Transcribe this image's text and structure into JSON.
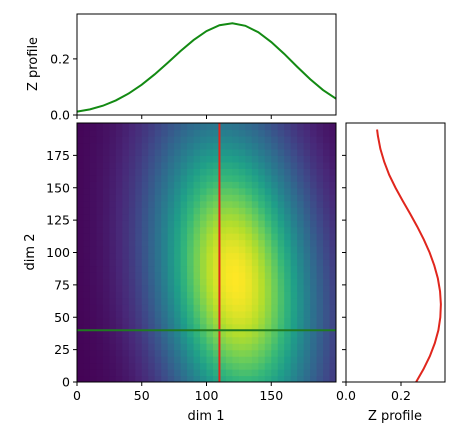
{
  "chart_data": {
    "type": "heatmap",
    "description_free": true,
    "main": {
      "xlabel": "dim 1",
      "ylabel": "dim 2",
      "xlim": [
        0,
        200
      ],
      "ylim": [
        0,
        200
      ],
      "xticks": [
        0,
        50,
        100,
        150
      ],
      "yticks": [
        0,
        25,
        50,
        75,
        100,
        125,
        150,
        175
      ],
      "colormap": "viridis",
      "peak": {
        "x": 122,
        "y": 80
      },
      "crosshair": {
        "x": 110,
        "y": 40
      },
      "vertical_line_color": "#e0261d",
      "horizontal_line_color": "#1f7a1f"
    },
    "top_profile": {
      "ylabel": "Z profile",
      "yticks": [
        0.0,
        0.2
      ],
      "ylim": [
        0,
        0.36
      ],
      "color": "#138a13",
      "x": [
        0,
        10,
        20,
        30,
        40,
        50,
        60,
        70,
        80,
        90,
        100,
        110,
        120,
        130,
        140,
        150,
        160,
        170,
        180,
        190,
        200
      ],
      "values": [
        0.012,
        0.02,
        0.033,
        0.052,
        0.077,
        0.108,
        0.145,
        0.186,
        0.228,
        0.267,
        0.299,
        0.32,
        0.327,
        0.318,
        0.295,
        0.26,
        0.218,
        0.172,
        0.128,
        0.089,
        0.058
      ]
    },
    "right_profile": {
      "xlabel": "Z profile",
      "xticks": [
        0.0,
        0.2
      ],
      "xlim": [
        0,
        0.36
      ],
      "color": "#e0261d",
      "y": [
        0,
        10,
        20,
        30,
        40,
        50,
        60,
        70,
        80,
        90,
        100,
        110,
        120,
        130,
        140,
        150,
        160,
        170,
        180,
        190,
        195
      ],
      "values": [
        0.255,
        0.282,
        0.305,
        0.323,
        0.336,
        0.343,
        0.345,
        0.342,
        0.334,
        0.321,
        0.304,
        0.283,
        0.259,
        0.233,
        0.206,
        0.18,
        0.157,
        0.139,
        0.125,
        0.116,
        0.113
      ]
    }
  }
}
